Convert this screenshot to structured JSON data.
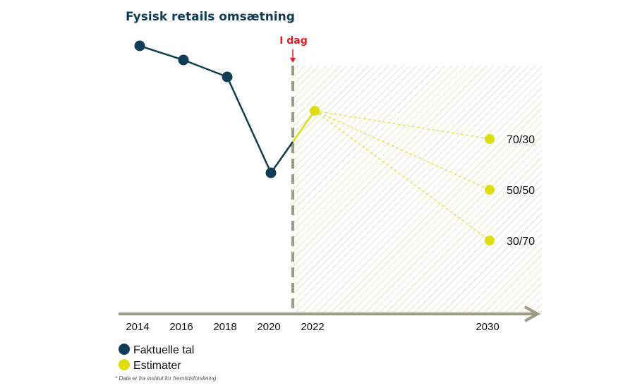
{
  "chart_data": {
    "type": "line",
    "title": "Fysisk retails omsætning",
    "xlabel": "",
    "ylabel": "",
    "x_ticks": [
      "2014",
      "2016",
      "2018",
      "2020",
      "2022",
      "2030"
    ],
    "xlim": [
      2014,
      2032
    ],
    "ylim": [
      0,
      100
    ],
    "grid": false,
    "today_marker": {
      "label": "I dag",
      "x": 2021
    },
    "series": [
      {
        "name": "Faktuelle tal",
        "x": [
          2014,
          2016,
          2018,
          2020
        ],
        "values": [
          95,
          90,
          84,
          50
        ]
      },
      {
        "name": "Estimater",
        "x": [
          2020,
          2021,
          2022
        ],
        "values": [
          50,
          61,
          72
        ]
      }
    ],
    "scenarios": [
      {
        "label": "70/30",
        "x": [
          2022,
          2030
        ],
        "values": [
          72,
          62
        ]
      },
      {
        "label": "50/50",
        "x": [
          2022,
          2030
        ],
        "values": [
          72,
          44
        ]
      },
      {
        "label": "30/70",
        "x": [
          2022,
          2030
        ],
        "values": [
          72,
          26
        ]
      }
    ],
    "legend": {
      "placement": "bottom-left",
      "items": [
        {
          "label": "Faktuelle tal",
          "color": "#0f3d57"
        },
        {
          "label": "Estimater",
          "color": "#dddd10"
        }
      ]
    },
    "footnote": "* Data er fra institut for fremtidsforskning",
    "colors": {
      "actual": "#0f3d57",
      "estimate": "#dddd10",
      "axis": "#9b9b86",
      "today": "#e01b22",
      "hatch": "#e6e8cf"
    }
  }
}
